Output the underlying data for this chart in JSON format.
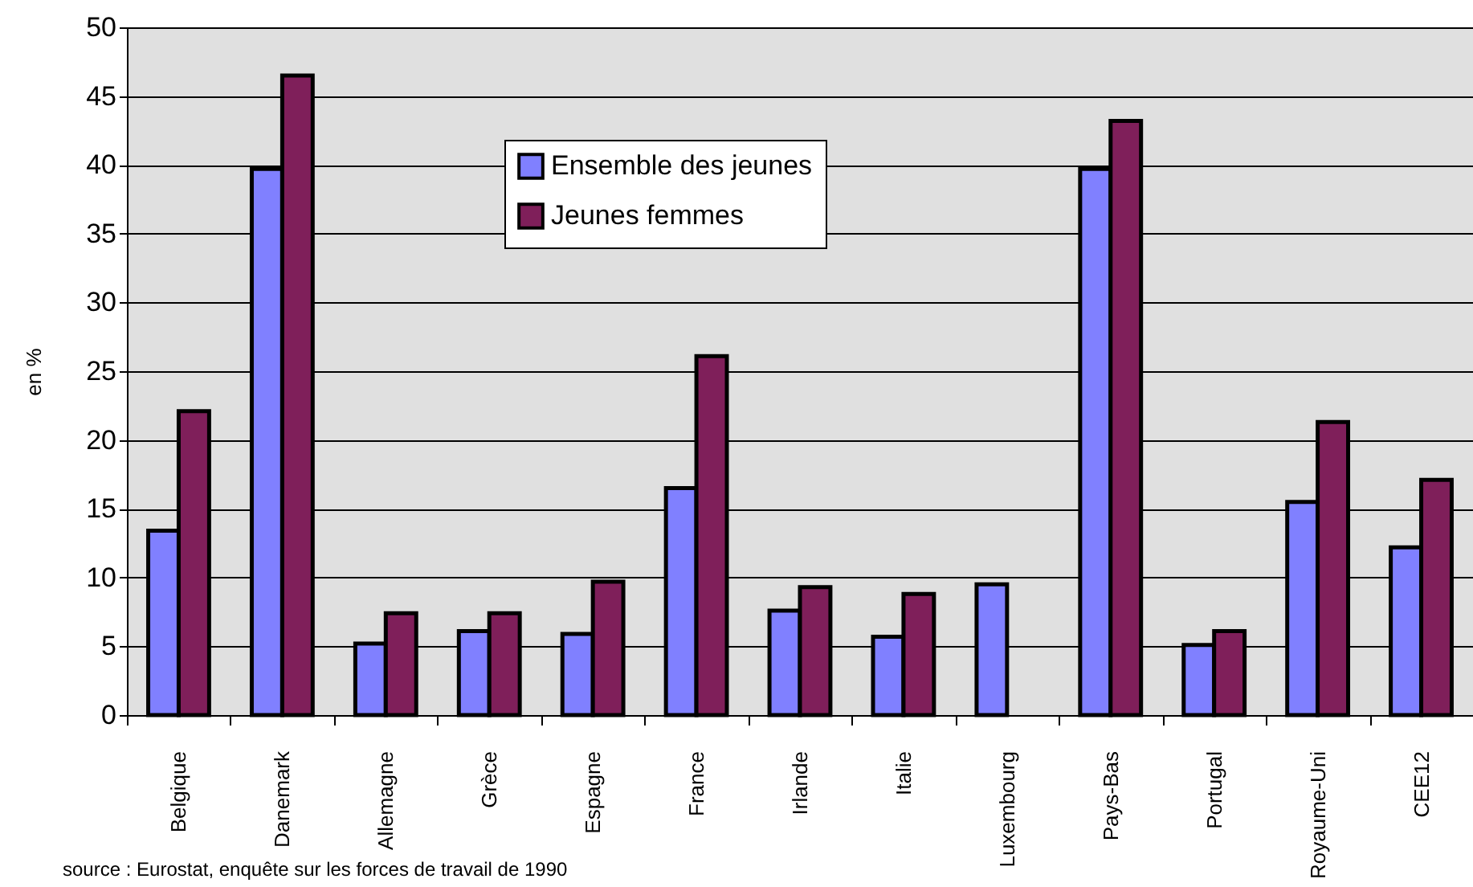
{
  "chart_data": {
    "type": "bar",
    "ylabel": "en %",
    "categories": [
      "Belgique",
      "Danemark",
      "Allemagne",
      "Grèce",
      "Espagne",
      "France",
      "Irlande",
      "Italie",
      "Luxembourg",
      "Pays-Bas",
      "Portugal",
      "Royaume-Uni",
      "CEE12"
    ],
    "series": [
      {
        "name": "Ensemble des jeunes",
        "color": "#8080ff",
        "values": [
          13.4,
          39.7,
          5.2,
          6.1,
          5.9,
          16.5,
          7.6,
          5.7,
          9.5,
          39.7,
          5.1,
          15.5,
          12.2
        ]
      },
      {
        "name": "Jeunes femmes",
        "color": "#7f1f5a",
        "values": [
          22.1,
          46.5,
          7.4,
          7.4,
          9.7,
          26.1,
          9.3,
          8.8,
          null,
          43.2,
          6.1,
          21.3,
          17.1
        ]
      }
    ],
    "ylim": [
      0,
      50
    ],
    "yticks": [
      0,
      5,
      10,
      15,
      20,
      25,
      30,
      35,
      40,
      45,
      50
    ],
    "grid": "y",
    "legend": "top",
    "annotations": [
      "source : Eurostat, enquête sur les forces de travail de 1990"
    ]
  }
}
